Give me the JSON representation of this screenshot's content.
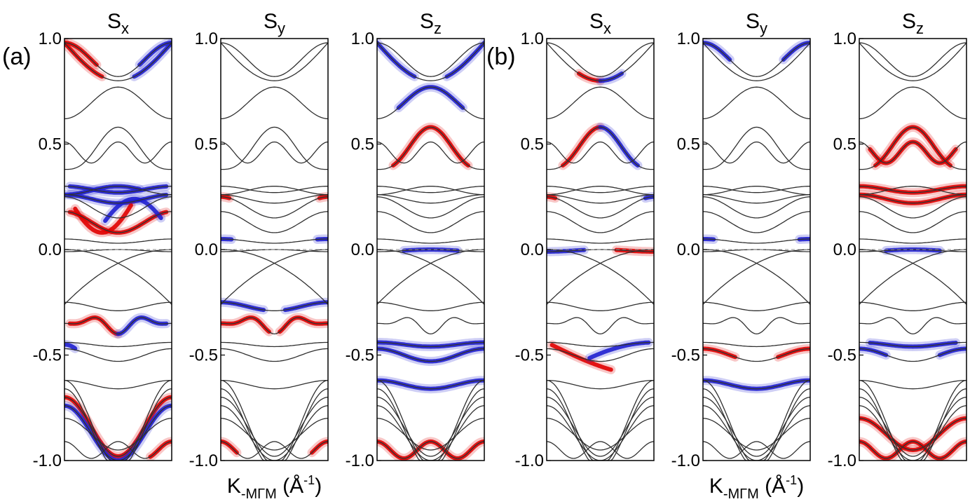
{
  "figure": {
    "xlabel_main": "K",
    "xlabel_sub": "-MΓM",
    "xlabel_unit": " (Å",
    "xlabel_exp": "-1",
    "xlabel_close": ")"
  },
  "colors": {
    "positive": "#e00000",
    "negative": "#2020d0",
    "band": "#303030",
    "frame": "#000000"
  },
  "chart_data": [
    {
      "type": "line",
      "group": "(a)",
      "title": "Sx",
      "title_main": "S",
      "title_sub": "x",
      "ylim": [
        -1.0,
        1.0
      ],
      "yticks": [
        "1.0",
        "0.5",
        "0.0",
        "-0.5",
        "-1.0"
      ],
      "xlabel": "",
      "highlights": [
        {
          "sign": "+",
          "band": "b095",
          "from": 0.0,
          "to": 0.35
        },
        {
          "sign": "-",
          "band": "b095",
          "from": 0.65,
          "to": 1.0
        },
        {
          "sign": "+",
          "band": "b085",
          "from": 0.0,
          "to": 0.3
        },
        {
          "sign": "-",
          "band": "b085",
          "from": 0.7,
          "to": 1.0
        },
        {
          "sign": "-",
          "band": "b031",
          "from": 0.05,
          "to": 0.95
        },
        {
          "sign": "-",
          "band": "b024",
          "from": 0.05,
          "to": 0.95
        },
        {
          "sign": "+",
          "band": "b012",
          "from": 0.05,
          "to": 0.95
        },
        {
          "sign": "+",
          "band": "cross1",
          "from": 0.1,
          "to": 0.62
        },
        {
          "sign": "-",
          "band": "cross2",
          "from": 0.38,
          "to": 0.9
        },
        {
          "sign": "-",
          "band": "b027",
          "from": 0.0,
          "to": 0.7
        },
        {
          "sign": "+",
          "band": "bm035",
          "from": 0.05,
          "to": 0.5
        },
        {
          "sign": "-",
          "band": "bm035",
          "from": 0.5,
          "to": 0.95
        },
        {
          "sign": "+",
          "band": "bm070",
          "from": 0.0,
          "to": 1.0
        },
        {
          "sign": "-",
          "band": "bm072",
          "from": 0.0,
          "to": 1.0
        },
        {
          "sign": "+",
          "band": "bm095",
          "from": 0.8,
          "to": 1.0
        },
        {
          "sign": "-",
          "band": "bm055",
          "from": 0.0,
          "to": 0.1
        }
      ]
    },
    {
      "type": "line",
      "group": "(a)",
      "title": "Sy",
      "title_main": "S",
      "title_sub": "y",
      "ylim": [
        -1.0,
        1.0
      ],
      "yticks": [
        "1.0",
        "0.5",
        "0.0",
        "-0.5",
        "-1.0"
      ],
      "xlabel": "K-MΓM (Å-1)",
      "highlights": [
        {
          "sign": "-",
          "band": "b005",
          "from": 0.0,
          "to": 0.1
        },
        {
          "sign": "-",
          "band": "b005",
          "from": 0.9,
          "to": 1.0
        },
        {
          "sign": "+",
          "band": "b022",
          "from": 0.0,
          "to": 0.08
        },
        {
          "sign": "+",
          "band": "b022",
          "from": 0.92,
          "to": 1.0
        },
        {
          "sign": "-",
          "band": "bm027",
          "from": 0.0,
          "to": 0.4
        },
        {
          "sign": "-",
          "band": "bm027",
          "from": 0.6,
          "to": 1.0
        },
        {
          "sign": "+",
          "band": "bm035",
          "from": 0.0,
          "to": 0.45
        },
        {
          "sign": "+",
          "band": "bm035",
          "from": 0.55,
          "to": 1.0
        },
        {
          "sign": "+",
          "band": "bm095",
          "from": 0.0,
          "to": 0.15
        },
        {
          "sign": "+",
          "band": "bm095",
          "from": 0.85,
          "to": 1.0
        }
      ]
    },
    {
      "type": "line",
      "group": "(a)",
      "title": "Sz",
      "title_main": "S",
      "title_sub": "z",
      "ylim": [
        -1.0,
        1.0
      ],
      "yticks": [
        "1.0",
        "0.5",
        "0.0",
        "-0.5",
        "-1.0"
      ],
      "xlabel": "",
      "highlights": [
        {
          "sign": "-",
          "band": "b095",
          "from": 0.0,
          "to": 0.35
        },
        {
          "sign": "-",
          "band": "b095",
          "from": 0.65,
          "to": 1.0
        },
        {
          "sign": "-",
          "band": "b075",
          "from": 0.2,
          "to": 0.8
        },
        {
          "sign": "+",
          "band": "b058",
          "from": 0.15,
          "to": 0.85
        },
        {
          "sign": "-",
          "band": "b000",
          "from": 0.25,
          "to": 0.75
        },
        {
          "sign": "-",
          "band": "bm045",
          "from": 0.0,
          "to": 1.0
        },
        {
          "sign": "-",
          "band": "bm050",
          "from": 0.0,
          "to": 1.0
        },
        {
          "sign": "-",
          "band": "bm062",
          "from": 0.0,
          "to": 1.0
        },
        {
          "sign": "+",
          "band": "bm095",
          "from": 0.0,
          "to": 1.0
        }
      ]
    },
    {
      "type": "line",
      "group": "(b)",
      "title": "Sx",
      "title_main": "S",
      "title_sub": "x",
      "ylim": [
        -1.0,
        1.0
      ],
      "yticks": [
        "1.0",
        "0.5",
        "0.0",
        "-0.5",
        "-1.0"
      ],
      "xlabel": "",
      "highlights": [
        {
          "sign": "+",
          "band": "b058",
          "from": 0.15,
          "to": 0.5
        },
        {
          "sign": "-",
          "band": "b058",
          "from": 0.5,
          "to": 0.85
        },
        {
          "sign": "-",
          "band": "b000",
          "from": 0.0,
          "to": 0.35
        },
        {
          "sign": "+",
          "band": "b000",
          "from": 0.65,
          "to": 1.0
        },
        {
          "sign": "+",
          "band": "crossb1",
          "from": 0.05,
          "to": 0.6
        },
        {
          "sign": "-",
          "band": "crossb2",
          "from": 0.4,
          "to": 0.95
        },
        {
          "sign": "+",
          "band": "b095",
          "from": 0.3,
          "to": 0.5
        },
        {
          "sign": "-",
          "band": "b095",
          "from": 0.5,
          "to": 0.7
        },
        {
          "sign": "+",
          "band": "b022",
          "from": 0.0,
          "to": 0.08
        },
        {
          "sign": "-",
          "band": "b022",
          "from": 0.92,
          "to": 1.0
        }
      ]
    },
    {
      "type": "line",
      "group": "(b)",
      "title": "Sy",
      "title_main": "S",
      "title_sub": "y",
      "ylim": [
        -1.0,
        1.0
      ],
      "yticks": [
        "1.0",
        "0.5",
        "0.0",
        "-0.5",
        "-1.0"
      ],
      "xlabel": "K-MΓM (Å-1)",
      "highlights": [
        {
          "sign": "-",
          "band": "b085",
          "from": 0.0,
          "to": 0.25
        },
        {
          "sign": "-",
          "band": "b085",
          "from": 0.75,
          "to": 1.0
        },
        {
          "sign": "-",
          "band": "b005",
          "from": 0.0,
          "to": 0.1
        },
        {
          "sign": "-",
          "band": "b005",
          "from": 0.9,
          "to": 1.0
        },
        {
          "sign": "+",
          "band": "bm050",
          "from": 0.0,
          "to": 0.3
        },
        {
          "sign": "+",
          "band": "bm050",
          "from": 0.7,
          "to": 1.0
        },
        {
          "sign": "-",
          "band": "bm062",
          "from": 0.0,
          "to": 1.0
        }
      ]
    },
    {
      "type": "line",
      "group": "(b)",
      "title": "Sz",
      "title_main": "S",
      "title_sub": "z",
      "ylim": [
        -1.0,
        1.0
      ],
      "yticks": [
        "1.0",
        "0.5",
        "0.0",
        "-0.5",
        "-1.0"
      ],
      "xlabel": "",
      "highlights": [
        {
          "sign": "+",
          "band": "b058",
          "from": 0.15,
          "to": 0.85
        },
        {
          "sign": "+",
          "band": "b050",
          "from": 0.1,
          "to": 0.9
        },
        {
          "sign": "+",
          "band": "b031",
          "from": 0.0,
          "to": 1.0
        },
        {
          "sign": "+",
          "band": "b024",
          "from": 0.0,
          "to": 1.0
        },
        {
          "sign": "-",
          "band": "b000",
          "from": 0.25,
          "to": 0.75
        },
        {
          "sign": "-",
          "band": "bm045",
          "from": 0.1,
          "to": 0.9
        },
        {
          "sign": "-",
          "band": "bm050",
          "from": 0.0,
          "to": 0.25
        },
        {
          "sign": "-",
          "band": "bm050",
          "from": 0.75,
          "to": 1.0
        },
        {
          "sign": "+",
          "band": "bm095",
          "from": 0.0,
          "to": 1.0
        },
        {
          "sign": "+",
          "band": "bm080",
          "from": 0.0,
          "to": 1.0
        }
      ]
    }
  ],
  "panel_labels": [
    "(a)",
    "(b)"
  ]
}
